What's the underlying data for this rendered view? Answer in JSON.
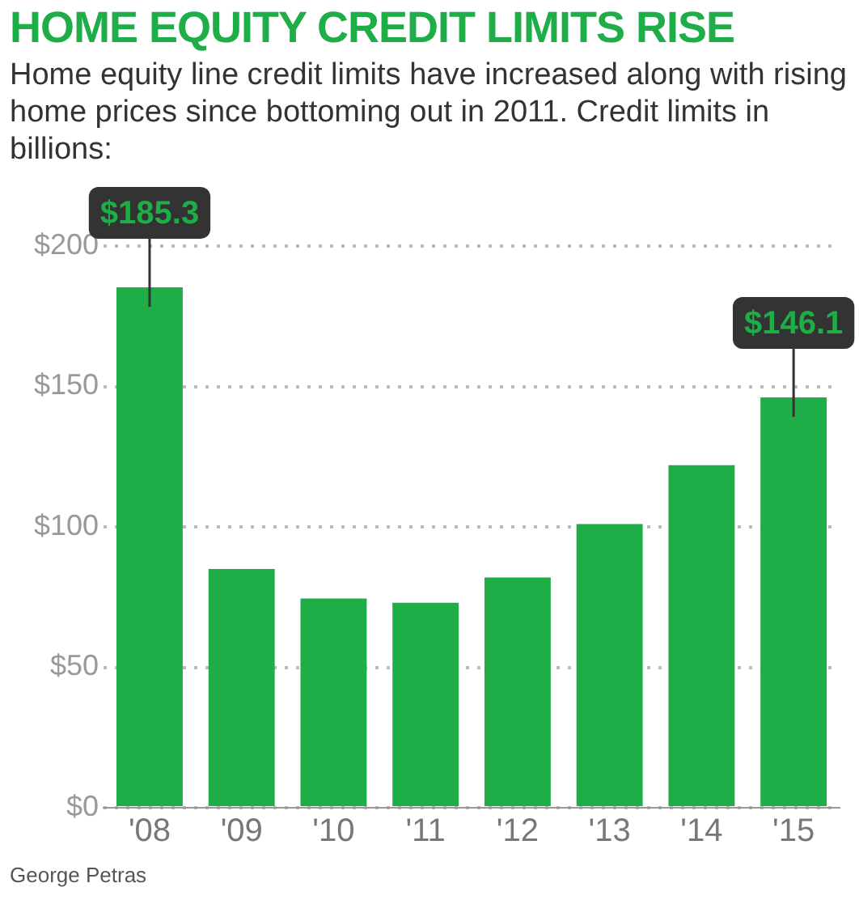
{
  "chart_data": {
    "type": "bar",
    "title": "HOME EQUITY CREDIT LIMITS RISE",
    "subtitle": "Home equity line credit limits have increased along with rising home prices since bottoming out in 2011. Credit limits in billions:",
    "categories": [
      "'08",
      "'09",
      "'10",
      "'11",
      "'12",
      "'13",
      "'14",
      "'15"
    ],
    "values": [
      185.3,
      85,
      74.5,
      73,
      82,
      101,
      122,
      146.1
    ],
    "value_labels": [
      "$185.3",
      null,
      null,
      null,
      null,
      null,
      null,
      "$146.1"
    ],
    "color": "#1fad48",
    "ylim": [
      0,
      200
    ],
    "yticks": [
      {
        "value": 0,
        "label": "$0"
      },
      {
        "value": 50,
        "label": "$50"
      },
      {
        "value": 100,
        "label": "$100"
      },
      {
        "value": 150,
        "label": "$150"
      },
      {
        "value": 200,
        "label": "$200"
      }
    ],
    "grid": "y",
    "annotations": [
      "George Petras"
    ]
  }
}
